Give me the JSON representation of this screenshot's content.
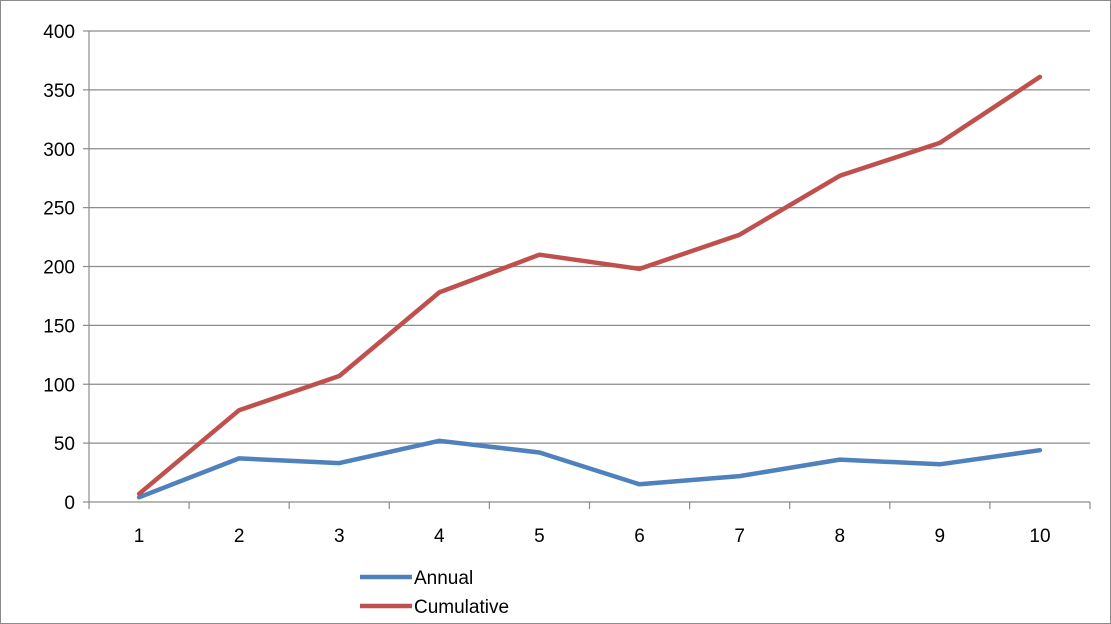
{
  "chart_data": {
    "type": "line",
    "title": "",
    "xlabel": "",
    "ylabel": "",
    "x": [
      "1",
      "2",
      "3",
      "4",
      "5",
      "6",
      "7",
      "8",
      "9",
      "10"
    ],
    "ylim": [
      0,
      400
    ],
    "yticks": [
      "0",
      "50",
      "100",
      "150",
      "200",
      "250",
      "300",
      "350",
      "400"
    ],
    "grid": true,
    "legend_position": "bottom",
    "series": [
      {
        "name": "Annual",
        "color": "#4f81bd",
        "values": [
          4,
          37,
          33,
          52,
          42,
          15,
          22,
          36,
          32,
          44
        ]
      },
      {
        "name": "Cumulative",
        "color": "#c0504d",
        "values": [
          7,
          78,
          107,
          178,
          210,
          198,
          227,
          277,
          305,
          361
        ]
      }
    ]
  }
}
